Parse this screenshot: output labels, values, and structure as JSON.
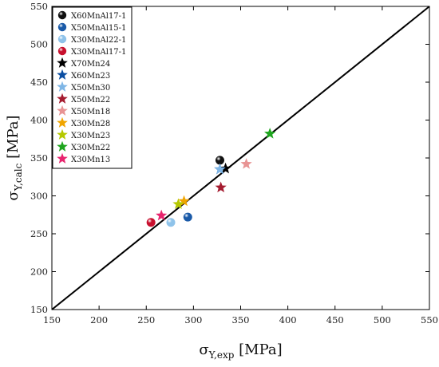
{
  "chart_data": {
    "type": "scatter",
    "xlabel": {
      "symbol": "σ",
      "sub": "Y,exp",
      "unit": " [MPa]"
    },
    "ylabel": {
      "symbol": "σ",
      "sub": "Y,calc",
      "unit": " [MPa]"
    },
    "xlim": [
      150,
      550
    ],
    "ylim": [
      150,
      550
    ],
    "xticks": [
      150,
      200,
      250,
      300,
      350,
      400,
      450,
      500,
      550
    ],
    "yticks": [
      150,
      200,
      250,
      300,
      350,
      400,
      450,
      500,
      550
    ],
    "grid": false,
    "legend_position": "top-left",
    "reference_line": {
      "from": [
        150,
        150
      ],
      "to": [
        550,
        550
      ],
      "color": "#000000"
    },
    "series": [
      {
        "name": "X60MnAl17-1",
        "marker": "sphere",
        "color": "#111111",
        "x": 328,
        "y": 347
      },
      {
        "name": "X50MnAl15-1",
        "marker": "sphere",
        "color": "#1a5aa8",
        "x": 294,
        "y": 272
      },
      {
        "name": "X30MnAl22-1",
        "marker": "sphere",
        "color": "#8fc3ea",
        "x": 276,
        "y": 265
      },
      {
        "name": "X30MnAl17-1",
        "marker": "sphere",
        "color": "#c8102e",
        "x": 255,
        "y": 265
      },
      {
        "name": "X70Mn24",
        "marker": "star",
        "color": "#000000",
        "x": 334,
        "y": 336
      },
      {
        "name": "X60Mn23",
        "marker": "star",
        "color": "#0b4ea2",
        "x": 328,
        "y": 335
      },
      {
        "name": "X50Mn30",
        "marker": "star",
        "color": "#7fb6e6",
        "x": 328,
        "y": 335
      },
      {
        "name": "X50Mn22",
        "marker": "star",
        "color": "#a51c30",
        "x": 329,
        "y": 311
      },
      {
        "name": "X50Mn18",
        "marker": "star",
        "color": "#e89494",
        "x": 356,
        "y": 342
      },
      {
        "name": "X30Mn28",
        "marker": "star",
        "color": "#f0a500",
        "x": 290,
        "y": 293
      },
      {
        "name": "X30Mn23",
        "marker": "star",
        "color": "#b5c800",
        "x": 284,
        "y": 289
      },
      {
        "name": "X30Mn22",
        "marker": "star",
        "color": "#1ea51e",
        "x": 381,
        "y": 382
      },
      {
        "name": "X30Mn13",
        "marker": "star",
        "color": "#e8246e",
        "x": 266,
        "y": 274
      }
    ]
  }
}
